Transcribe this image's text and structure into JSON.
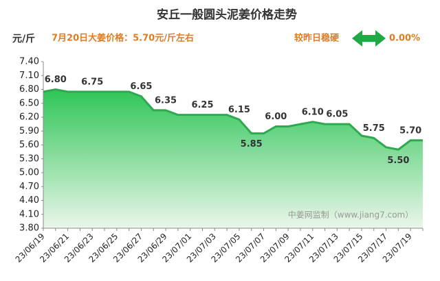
{
  "chart_data": {
    "type": "area",
    "title": "安丘一般圆头泥姜价格走势",
    "unit": "元/斤",
    "subtitle": "7月20日大姜价格：5.70元/斤左右",
    "change_label": "较昨日稳硬",
    "change_value": "0.00%",
    "watermark": "中姜网监制（www.jiang7.com）",
    "categories": [
      "23/06/19",
      null,
      "23/06/21",
      null,
      "23/06/23",
      null,
      "23/06/25",
      null,
      "23/06/27",
      null,
      "23/06/29",
      null,
      "23/07/01",
      null,
      "23/07/03",
      null,
      "23/07/05",
      null,
      "23/07/07",
      null,
      "23/07/09",
      null,
      "23/07/11",
      null,
      "23/07/13",
      null,
      "23/07/15",
      null,
      "23/07/17",
      null,
      "23/07/19",
      null
    ],
    "values": [
      6.75,
      6.8,
      6.75,
      6.75,
      6.75,
      6.75,
      6.75,
      6.75,
      6.65,
      6.35,
      6.35,
      6.25,
      6.25,
      6.25,
      6.25,
      6.25,
      6.15,
      5.85,
      5.85,
      6.0,
      6.0,
      6.05,
      6.1,
      6.05,
      6.05,
      6.05,
      5.8,
      5.75,
      5.55,
      5.5,
      5.7,
      5.7
    ],
    "value_labels": [
      null,
      "6.80",
      null,
      null,
      "6.75",
      null,
      null,
      null,
      "6.65",
      null,
      "6.35",
      null,
      null,
      "6.25",
      null,
      null,
      "6.15",
      "5.85",
      null,
      "6.00",
      null,
      null,
      "6.10",
      null,
      "6.05",
      null,
      null,
      "5.75",
      null,
      "5.50",
      "5.70",
      null
    ],
    "color": "#2fa84f",
    "ylim": [
      3.8,
      7.4
    ],
    "yticks": [
      {
        "value": 3.8,
        "label": "3.80"
      },
      {
        "value": 4.1,
        "label": "4.10"
      },
      {
        "value": 4.4,
        "label": "4.40"
      },
      {
        "value": 4.7,
        "label": "4.70"
      },
      {
        "value": 5.0,
        "label": "5.00"
      },
      {
        "value": 5.3,
        "label": "5.30"
      },
      {
        "value": 5.6,
        "label": "5.60"
      },
      {
        "value": 5.9,
        "label": "5.90"
      },
      {
        "value": 6.2,
        "label": "6.20"
      },
      {
        "value": 6.5,
        "label": "6.50"
      },
      {
        "value": 6.8,
        "label": "6.80"
      },
      {
        "value": 7.1,
        "label": "7.10"
      },
      {
        "value": 7.4,
        "label": "7.40"
      }
    ],
    "grid": false
  }
}
